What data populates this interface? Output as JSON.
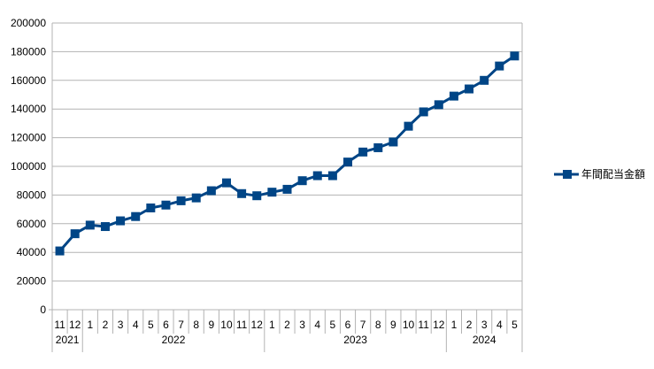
{
  "chart_data": {
    "type": "line",
    "title": "",
    "xlabel": "",
    "ylabel": "",
    "ylim": [
      0,
      200000
    ],
    "yticks": [
      0,
      20000,
      40000,
      60000,
      80000,
      100000,
      120000,
      140000,
      160000,
      180000,
      200000
    ],
    "grid": true,
    "legend_position": "right",
    "categories": [
      "11",
      "12",
      "1",
      "2",
      "3",
      "4",
      "5",
      "6",
      "7",
      "8",
      "9",
      "10",
      "11",
      "12",
      "1",
      "2",
      "3",
      "4",
      "5",
      "6",
      "7",
      "8",
      "9",
      "10",
      "11",
      "12",
      "1",
      "2",
      "3",
      "4",
      "5"
    ],
    "year_groups": [
      {
        "label": "2021",
        "start": 0,
        "end": 1
      },
      {
        "label": "2022",
        "start": 2,
        "end": 13
      },
      {
        "label": "2023",
        "start": 14,
        "end": 25
      },
      {
        "label": "2024",
        "start": 26,
        "end": 30
      }
    ],
    "series": [
      {
        "name": "年間配当金額",
        "color": "#004586",
        "values": [
          41000,
          53000,
          59000,
          58000,
          62000,
          65000,
          71000,
          73000,
          76000,
          78000,
          83000,
          88500,
          81000,
          79500,
          82000,
          84000,
          90000,
          93500,
          93500,
          103000,
          110000,
          113000,
          117000,
          128000,
          138000,
          143000,
          149000,
          154000,
          160000,
          170000,
          177000
        ]
      }
    ]
  }
}
